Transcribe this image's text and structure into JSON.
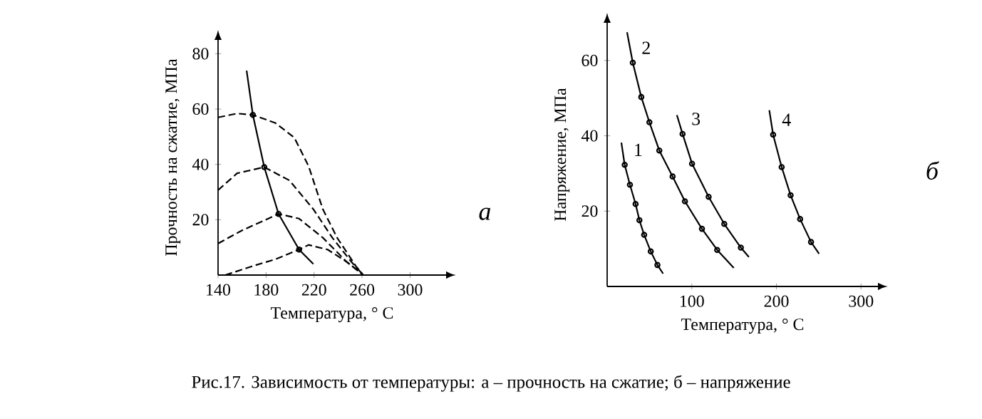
{
  "chart_data": [
    {
      "type": "line",
      "xlabel": "Температура, ° C",
      "ylabel": "Прочность на сжатие, МПа",
      "xlim": [
        140,
        330
      ],
      "ylim": [
        0,
        85
      ],
      "xticks": [
        140,
        180,
        220,
        260,
        300
      ],
      "yticks": [
        20,
        40,
        60,
        80
      ],
      "annotations": [
        "а",
        "Рис.17. Зависимость от температуры: а – прочность на сжатие; б – напряжение"
      ],
      "series": [
        {
          "color": "#000000",
          "line_style": "solid",
          "marker": "none",
          "x": [
            163.8,
            169,
            178.5,
            190.4,
            207.5,
            219.4
          ],
          "values": [
            73.9,
            57.9,
            39,
            22.1,
            9.2,
            4.0
          ]
        },
        {
          "type": "scatter",
          "color": "#000000",
          "marker": "circle",
          "x": [
            169,
            178.5,
            190.4,
            207.5
          ],
          "values": [
            57.9,
            39,
            22.1,
            9.2
          ]
        },
        {
          "color": "#000000",
          "line_style": "dashed",
          "marker": "none",
          "x": [
            140,
            155.9,
            169,
            187.6,
            203.5,
            215.4,
            227.3,
            239.2,
            255,
            261
          ],
          "values": [
            57,
            58.4,
            57.9,
            55,
            49.7,
            39.4,
            23.8,
            13.5,
            3.1,
            0
          ]
        },
        {
          "color": "#000000",
          "line_style": "dashed",
          "marker": "none",
          "x": [
            140,
            155.9,
            178.5,
            199.5,
            219.4,
            235.2,
            251,
            261
          ],
          "values": [
            30.7,
            36.8,
            39,
            34.2,
            23.8,
            13.5,
            4.8,
            0
          ]
        },
        {
          "color": "#000000",
          "line_style": "dashed",
          "marker": "none",
          "x": [
            140,
            159.8,
            190.4,
            207.5,
            227.3,
            247.1,
            261
          ],
          "values": [
            11.4,
            16.1,
            22.1,
            20.4,
            13.5,
            4.8,
            0
          ]
        },
        {
          "color": "#000000",
          "line_style": "dashed",
          "marker": "none",
          "x": [
            146,
            167.8,
            187.6,
            207.5,
            215.4,
            231.3,
            247.1,
            261
          ],
          "values": [
            0,
            3.1,
            5.7,
            9.2,
            10.9,
            9.2,
            4.8,
            0
          ]
        }
      ]
    },
    {
      "type": "line",
      "xlabel": "Температура, ° C",
      "ylabel": "Напряжение, МПа",
      "xlim": [
        0,
        320
      ],
      "ylim": [
        0,
        70
      ],
      "xticks": [
        100,
        200,
        300
      ],
      "yticks": [
        20,
        40,
        60
      ],
      "marker": "circle",
      "line_style": "solid",
      "annotations": [
        "б"
      ],
      "series": [
        {
          "name": "1",
          "color": "#000000",
          "x": [
            16.8,
            20.7,
            26.9,
            33.6,
            38.1,
            43.7,
            51.5,
            59.4,
            66.1
          ],
          "values": [
            38.2,
            32.3,
            27.0,
            21.9,
            17.6,
            13.7,
            9.3,
            5.7,
            3.4
          ]
        },
        {
          "name": "2",
          "color": "#000000",
          "x": [
            23.5,
            30.3,
            40.3,
            49.9,
            61.6,
            77.3,
            91.9,
            112.0,
            130.0,
            149.6
          ],
          "values": [
            67.5,
            59.4,
            50.3,
            43.6,
            36.1,
            29.2,
            22.6,
            15.3,
            9.7,
            4.9
          ]
        },
        {
          "name": "3",
          "color": "#000000",
          "x": [
            82.4,
            89.1,
            100.3,
            119.9,
            138.4,
            158.0,
            167.5
          ],
          "values": [
            45.5,
            40.5,
            32.6,
            23.8,
            16.6,
            10.3,
            7.8
          ]
        },
        {
          "name": "4",
          "color": "#000000",
          "x": [
            191.6,
            196.1,
            206.2,
            216.8,
            228.0,
            240.9,
            250.4
          ],
          "values": [
            46.8,
            40.3,
            31.7,
            24.2,
            17.9,
            11.8,
            8.7
          ]
        }
      ]
    }
  ]
}
